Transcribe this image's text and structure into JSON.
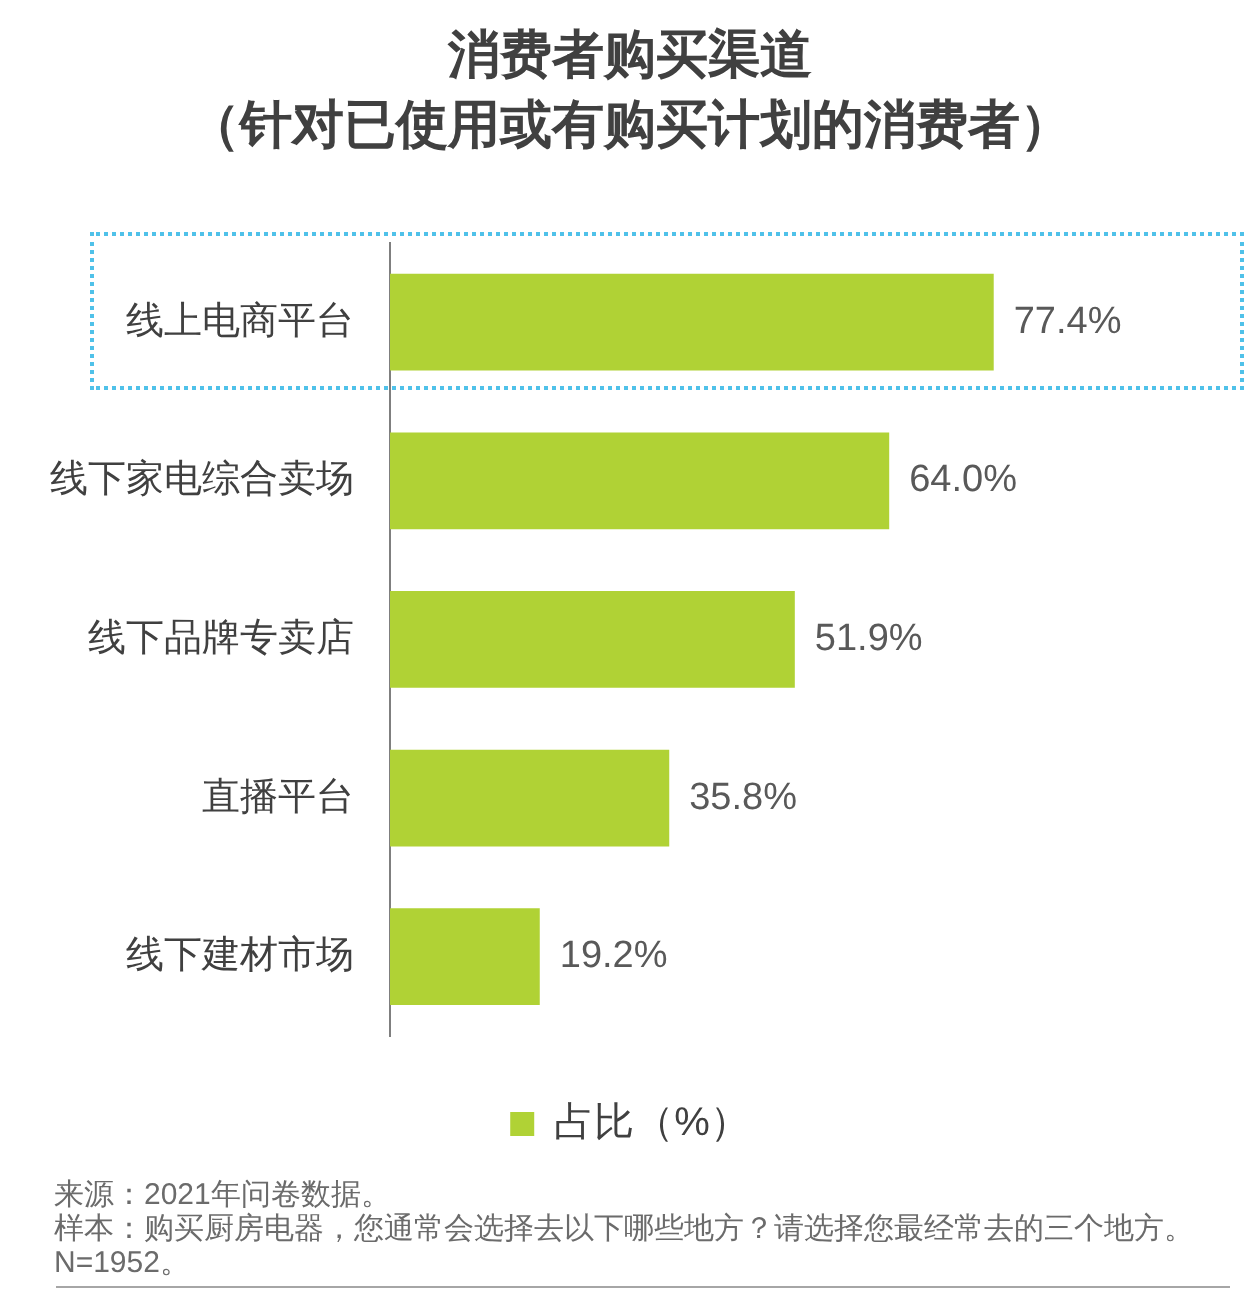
{
  "chart_data": {
    "type": "bar",
    "orientation": "horizontal",
    "title": "消费者购买渠道",
    "subtitle": "（针对已使用或有购买计划的消费者）",
    "categories": [
      "线上电商平台",
      "线下家电综合卖场",
      "线下品牌专卖店",
      "直播平台",
      "线下建材市场"
    ],
    "series": [
      {
        "name": "占比（%）",
        "color": "#b0d235",
        "values": [
          77.4,
          64.0,
          51.9,
          35.8,
          19.2
        ],
        "value_labels": [
          "77.4%",
          "64.0%",
          "51.9%",
          "35.8%",
          "19.2%"
        ]
      }
    ],
    "tick_labels": "y",
    "grid": false,
    "legend": "bottom",
    "annotations": [
      "来源：2021年问卷数据。",
      "样本：购买厨房电器，您通常会选择去以下哪些地方？请选择您最经常去的三个地方。",
      "N=1952。"
    ]
  }
}
